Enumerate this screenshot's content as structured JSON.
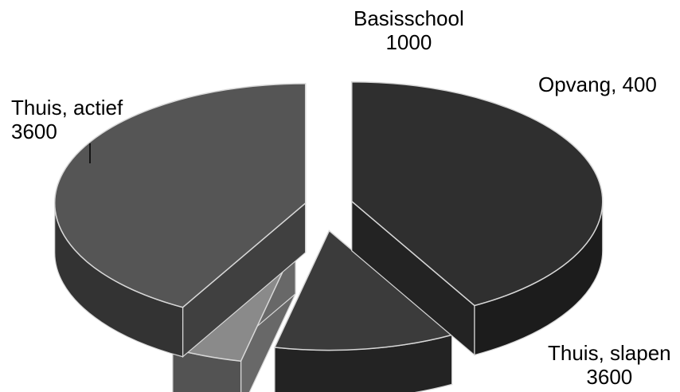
{
  "chart_data": {
    "type": "pie",
    "style": "3d-exploded",
    "slices": [
      {
        "name": "Thuis, actief",
        "value": 3600,
        "label_line1": "Thuis, actief",
        "label_line2": "3600",
        "color": "#2f2f2f"
      },
      {
        "name": "Basisschool",
        "value": 1000,
        "label_line1": "Basisschool",
        "label_line2": "1000",
        "color": "#3b3b3b"
      },
      {
        "name": "Opvang",
        "value": 400,
        "label_line1": "Opvang, 400",
        "label_line2": "",
        "color": "#8a8a8a"
      },
      {
        "name": "Thuis, slapen",
        "value": 3600,
        "label_line1": "Thuis, slapen",
        "label_line2": "3600",
        "color": "#555555"
      }
    ],
    "legend": "none",
    "title": ""
  }
}
